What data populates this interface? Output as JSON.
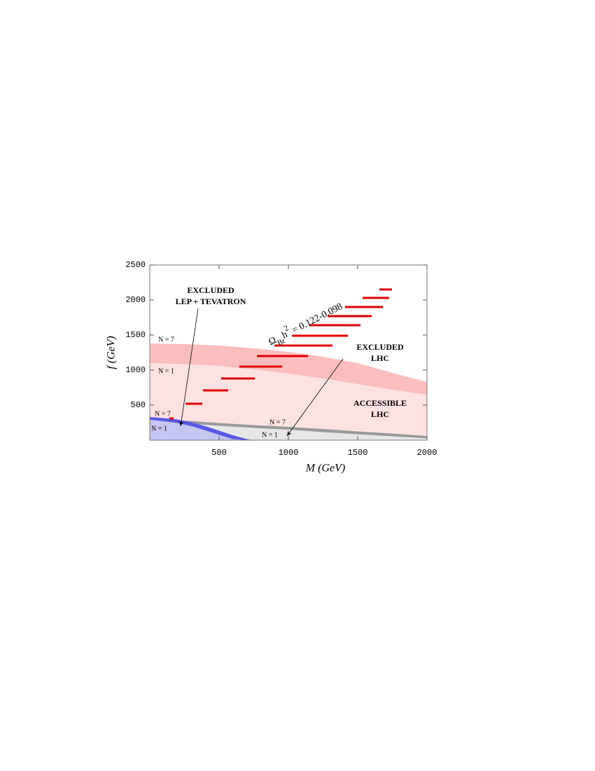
{
  "chart_data": {
    "type": "range-band",
    "xlabel": "M (GeV)",
    "ylabel": "f (GeV)",
    "xlim": [
      0,
      2000
    ],
    "ylim": [
      0,
      2500
    ],
    "xticks": [
      500,
      1000,
      1500,
      2000
    ],
    "yticks": [
      500,
      1000,
      1500,
      2000,
      2500
    ],
    "regions": [
      {
        "color": "#fde2e2",
        "x": [
          0,
          250,
          500,
          750,
          1000,
          1250,
          1500,
          1750,
          2000
        ],
        "upper": [
          1100,
          1085,
          1060,
          1010,
          950,
          880,
          800,
          720,
          650
        ],
        "lower": [
          330,
          280,
          245,
          215,
          190,
          160,
          125,
          95,
          60
        ]
      },
      {
        "color": "#fbbdbd",
        "x": [
          0,
          250,
          500,
          750,
          1000,
          1250,
          1500,
          1750,
          2000
        ],
        "upper": [
          1380,
          1370,
          1350,
          1310,
          1260,
          1190,
          1100,
          960,
          830
        ],
        "lower": [
          1100,
          1085,
          1060,
          1010,
          950,
          880,
          800,
          720,
          650
        ]
      },
      {
        "color": "#e6e6e6",
        "x": [
          250,
          500,
          750,
          1000,
          1250,
          1500,
          1750,
          2000
        ],
        "upper": [
          240,
          205,
          175,
          150,
          115,
          85,
          55,
          25
        ]
      },
      {
        "color": "#999999",
        "x": [
          250,
          500,
          750,
          1000,
          1250,
          1500,
          1750,
          2000
        ],
        "upper": [
          280,
          245,
          215,
          190,
          160,
          125,
          95,
          60
        ],
        "lower": [
          240,
          205,
          175,
          150,
          115,
          85,
          55,
          25
        ]
      },
      {
        "color": "#c6c6f2",
        "x": [
          0,
          100,
          200,
          300,
          400,
          500,
          600,
          650
        ],
        "upper": [
          290,
          270,
          245,
          200,
          140,
          75,
          15,
          0
        ]
      },
      {
        "color": "#5858e6",
        "x": [
          0,
          100,
          200,
          300,
          400,
          500,
          600,
          700,
          740
        ],
        "upper": [
          330,
          315,
          295,
          255,
          200,
          135,
          70,
          15,
          0
        ],
        "lower": [
          290,
          270,
          245,
          200,
          140,
          75,
          15,
          0,
          0
        ]
      }
    ],
    "segment_color": "#e00000",
    "segments": [
      {
        "f": 2150,
        "m": [
          1656,
          1747
        ]
      },
      {
        "f": 2030,
        "m": [
          1535,
          1727
        ]
      },
      {
        "f": 1900,
        "m": [
          1409,
          1682
        ]
      },
      {
        "f": 1770,
        "m": [
          1283,
          1601
        ]
      },
      {
        "f": 1640,
        "m": [
          1152,
          1520
        ]
      },
      {
        "f": 1490,
        "m": [
          1025,
          1429
        ]
      },
      {
        "f": 1350,
        "m": [
          899,
          1318
        ]
      },
      {
        "f": 1200,
        "m": [
          773,
          1141
        ]
      },
      {
        "f": 1050,
        "m": [
          646,
          955
        ]
      },
      {
        "f": 880,
        "m": [
          515,
          758
        ]
      },
      {
        "f": 710,
        "m": [
          384,
          566
        ]
      },
      {
        "f": 520,
        "m": [
          258,
          379
        ]
      },
      {
        "f": 310,
        "m": [
          141,
          172
        ]
      }
    ],
    "annotations": {
      "lep_1": "EXCLUDED",
      "lep_2": "LEP + TEVATRON",
      "lhc_1": "EXCLUDED",
      "lhc_2": "LHC",
      "acc_1": "ACCESSIBLE",
      "acc_2": "LHC",
      "n7_top": "N = 7",
      "n1_top": "N = 1",
      "n7_blue": "N = 7",
      "n1_blue": "N = 1",
      "n7_gray": "N = 7",
      "n1_gray": "N = 1",
      "omega": {
        "symbol": "Ω",
        "subscript": "Br",
        "h": "h",
        "superscript": "2",
        "rest": " = 0.122-0.098"
      }
    }
  }
}
